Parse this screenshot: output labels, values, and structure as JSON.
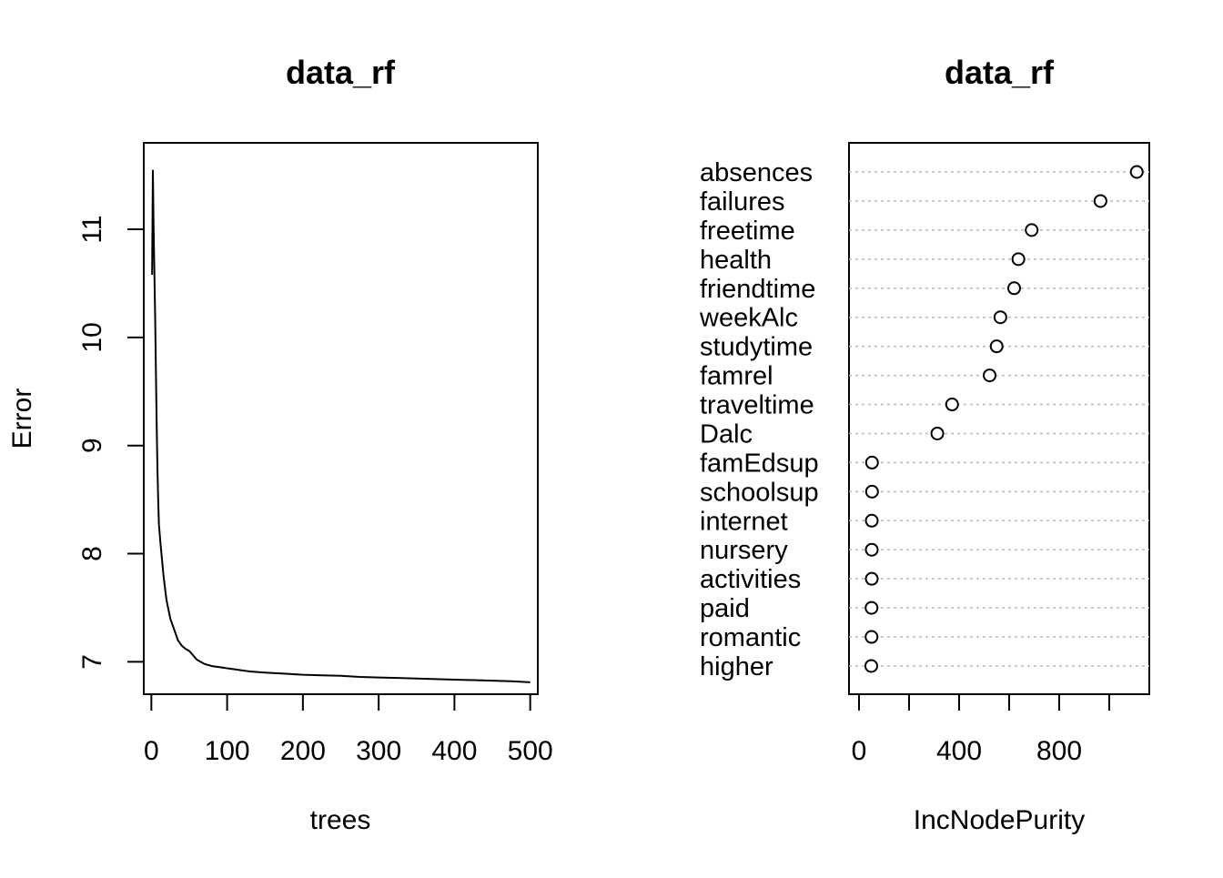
{
  "chart_data": [
    {
      "type": "line",
      "title": "data_rf",
      "xlabel": "trees",
      "ylabel": "Error",
      "xlim": [
        -10,
        510
      ],
      "ylim": [
        6.7,
        11.8
      ],
      "x_ticks": [
        0,
        100,
        200,
        300,
        400,
        500
      ],
      "y_ticks": [
        7,
        8,
        9,
        10,
        11
      ],
      "series": [
        {
          "x": [
            1,
            2,
            3,
            4,
            5,
            6,
            7,
            8,
            9,
            10,
            12,
            14,
            16,
            18,
            20,
            25,
            30,
            35,
            40,
            45,
            50,
            55,
            60,
            65,
            70,
            80,
            90,
            100,
            110,
            120,
            130,
            140,
            150,
            175,
            200,
            225,
            250,
            275,
            300,
            325,
            350,
            375,
            400,
            425,
            450,
            475,
            500
          ],
          "values": [
            10.58,
            11.55,
            11.0,
            10.6,
            10.2,
            9.7,
            9.2,
            8.8,
            8.5,
            8.27,
            8.1,
            7.95,
            7.8,
            7.68,
            7.57,
            7.4,
            7.3,
            7.2,
            7.15,
            7.12,
            7.1,
            7.06,
            7.02,
            7.0,
            6.98,
            6.96,
            6.95,
            6.94,
            6.93,
            6.92,
            6.91,
            6.905,
            6.9,
            6.89,
            6.88,
            6.875,
            6.87,
            6.86,
            6.855,
            6.85,
            6.845,
            6.84,
            6.835,
            6.83,
            6.825,
            6.82,
            6.81
          ]
        }
      ],
      "grid": false,
      "legend": "none"
    },
    {
      "type": "scatter",
      "title": "data_rf",
      "xlabel": "IncNodePurity",
      "ylabel": "",
      "xlim": [
        -40,
        1160
      ],
      "x_ticks": [
        0,
        200,
        400,
        600,
        800,
        1000
      ],
      "x_tick_labels": [
        "0",
        "",
        "400",
        "",
        "800",
        ""
      ],
      "categories": [
        "absences",
        "failures",
        "freetime",
        "health",
        "friendtime",
        "weekAlc",
        "studytime",
        "famrel",
        "traveltime",
        "Dalc",
        "famEdsup",
        "schoolsup",
        "internet",
        "nursery",
        "activities",
        "paid",
        "romantic",
        "higher"
      ],
      "values": [
        1110,
        965,
        690,
        637,
        620,
        565,
        550,
        522,
        372,
        313,
        52,
        52,
        51,
        51,
        51,
        50,
        50,
        49
      ],
      "grid": "horizontal dotted",
      "legend": "none"
    }
  ]
}
